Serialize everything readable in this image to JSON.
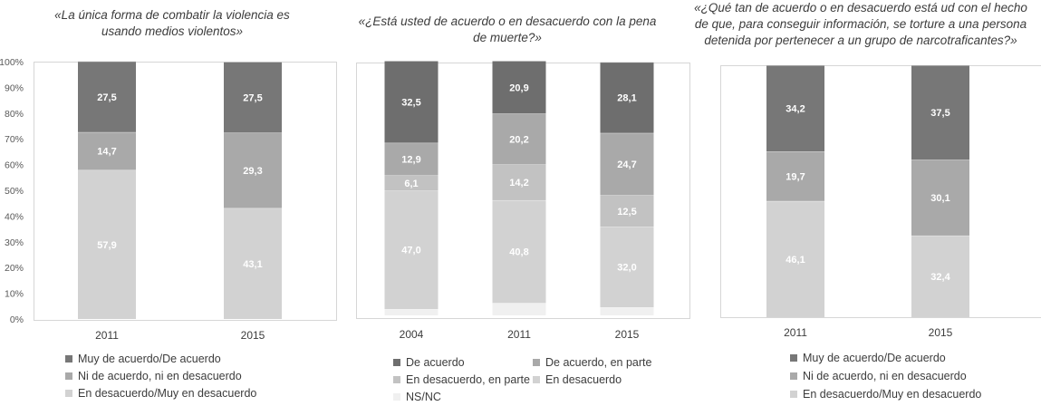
{
  "chart_data": [
    {
      "type": "bar",
      "stacked": true,
      "title": "«La única forma de combatir la violencia es usando medios violentos»",
      "title_lines": [
        "«La única forma de combatir la violencia es",
        "usando medios violentos»"
      ],
      "categories": [
        "2011",
        "2015"
      ],
      "ylim": [
        0,
        100
      ],
      "yticks": [
        "0%",
        "10%",
        "20%",
        "30%",
        "40%",
        "50%",
        "60%",
        "70%",
        "80%",
        "90%",
        "100%"
      ],
      "series": [
        {
          "name": "En desacuerdo/Muy en desacuerdo",
          "color": "#d2d2d2",
          "label_color": "#ffffff",
          "values": [
            57.9,
            43.1
          ],
          "labels": [
            "57,9",
            "43,1"
          ]
        },
        {
          "name": "Ni de acuerdo, ni en desacuerdo",
          "color": "#a9a9a9",
          "label_color": "#ffffff",
          "values": [
            14.7,
            29.3
          ],
          "labels": [
            "14,7",
            "29,3"
          ]
        },
        {
          "name": "Muy de acuerdo/De acuerdo",
          "color": "#777777",
          "label_color": "#ffffff",
          "values": [
            27.5,
            27.5
          ],
          "labels": [
            "27,5",
            "27,5"
          ]
        }
      ],
      "legend": [
        "Muy de acuerdo/De acuerdo",
        "Ni de acuerdo, ni en desacuerdo",
        "En desacuerdo/Muy en desacuerdo"
      ]
    },
    {
      "type": "bar",
      "stacked": true,
      "title": "«¿Está usted de acuerdo o en desacuerdo con la pena de muerte?»",
      "title_lines": [
        "«¿Está usted de acuerdo o en desacuerdo con la pena",
        "de muerte?»"
      ],
      "categories": [
        "2004",
        "2011",
        "2015"
      ],
      "ylim": [
        0,
        100
      ],
      "series": [
        {
          "name": "NS/NC",
          "color": "#f0f0f0",
          "label_color": "#ffffff",
          "values": [
            2.5,
            4.9,
            3.2
          ],
          "labels": [
            "",
            "",
            ""
          ]
        },
        {
          "name": "En desacuerdo",
          "color": "#d2d2d2",
          "label_color": "#ffffff",
          "values": [
            47.0,
            40.8,
            32.0
          ],
          "labels": [
            "47,0",
            "40,8",
            "32,0"
          ]
        },
        {
          "name": "En desacuerdo, en parte",
          "color": "#c2c2c2",
          "label_color": "#ffffff",
          "values": [
            6.1,
            14.2,
            12.5
          ],
          "labels": [
            "6,1",
            "14,2",
            "12,5"
          ]
        },
        {
          "name": "De acuerdo, en parte",
          "color": "#a9a9a9",
          "label_color": "#ffffff",
          "values": [
            12.9,
            20.2,
            24.7
          ],
          "labels": [
            "12,9",
            "20,2",
            "24,7"
          ]
        },
        {
          "name": "De acuerdo",
          "color": "#6e6e6e",
          "label_color": "#ffffff",
          "values": [
            32.5,
            20.9,
            28.1
          ],
          "labels": [
            "32,5",
            "20,9",
            "28,1"
          ]
        }
      ],
      "legend": [
        "De acuerdo",
        "De acuerdo, en parte",
        "En desacuerdo, en parte",
        "En desacuerdo",
        "NS/NC"
      ]
    },
    {
      "type": "bar",
      "stacked": true,
      "title": "«¿Qué tan de acuerdo o en desacuerdo está ud con el hecho de que, para conseguir información, se torture a una persona detenida por pertenecer a un grupo de narcotraficantes?»",
      "title_lines": [
        "«¿Qué tan de acuerdo o en desacuerdo está ud con el hecho",
        "de que, para conseguir información, se torture a una persona",
        "detenida por pertenecer a un grupo de narcotraficantes?»"
      ],
      "categories": [
        "2011",
        "2015"
      ],
      "ylim": [
        0,
        100
      ],
      "series": [
        {
          "name": "En desacuerdo/Muy en desacuerdo",
          "color": "#d2d2d2",
          "label_color": "#ffffff",
          "values": [
            46.1,
            32.4
          ],
          "labels": [
            "46,1",
            "32,4"
          ]
        },
        {
          "name": "Ni de acuerdo, ni en desacuerdo",
          "color": "#a9a9a9",
          "label_color": "#ffffff",
          "values": [
            19.7,
            30.1
          ],
          "labels": [
            "19,7",
            "30,1"
          ]
        },
        {
          "name": "Muy de acuerdo/De acuerdo",
          "color": "#777777",
          "label_color": "#ffffff",
          "values": [
            34.2,
            37.5
          ],
          "labels": [
            "34,2",
            "37,5"
          ]
        }
      ],
      "legend": [
        "Muy de acuerdo/De acuerdo",
        "Ni de acuerdo, ni en desacuerdo",
        "En desacuerdo/Muy en desacuerdo"
      ]
    }
  ]
}
